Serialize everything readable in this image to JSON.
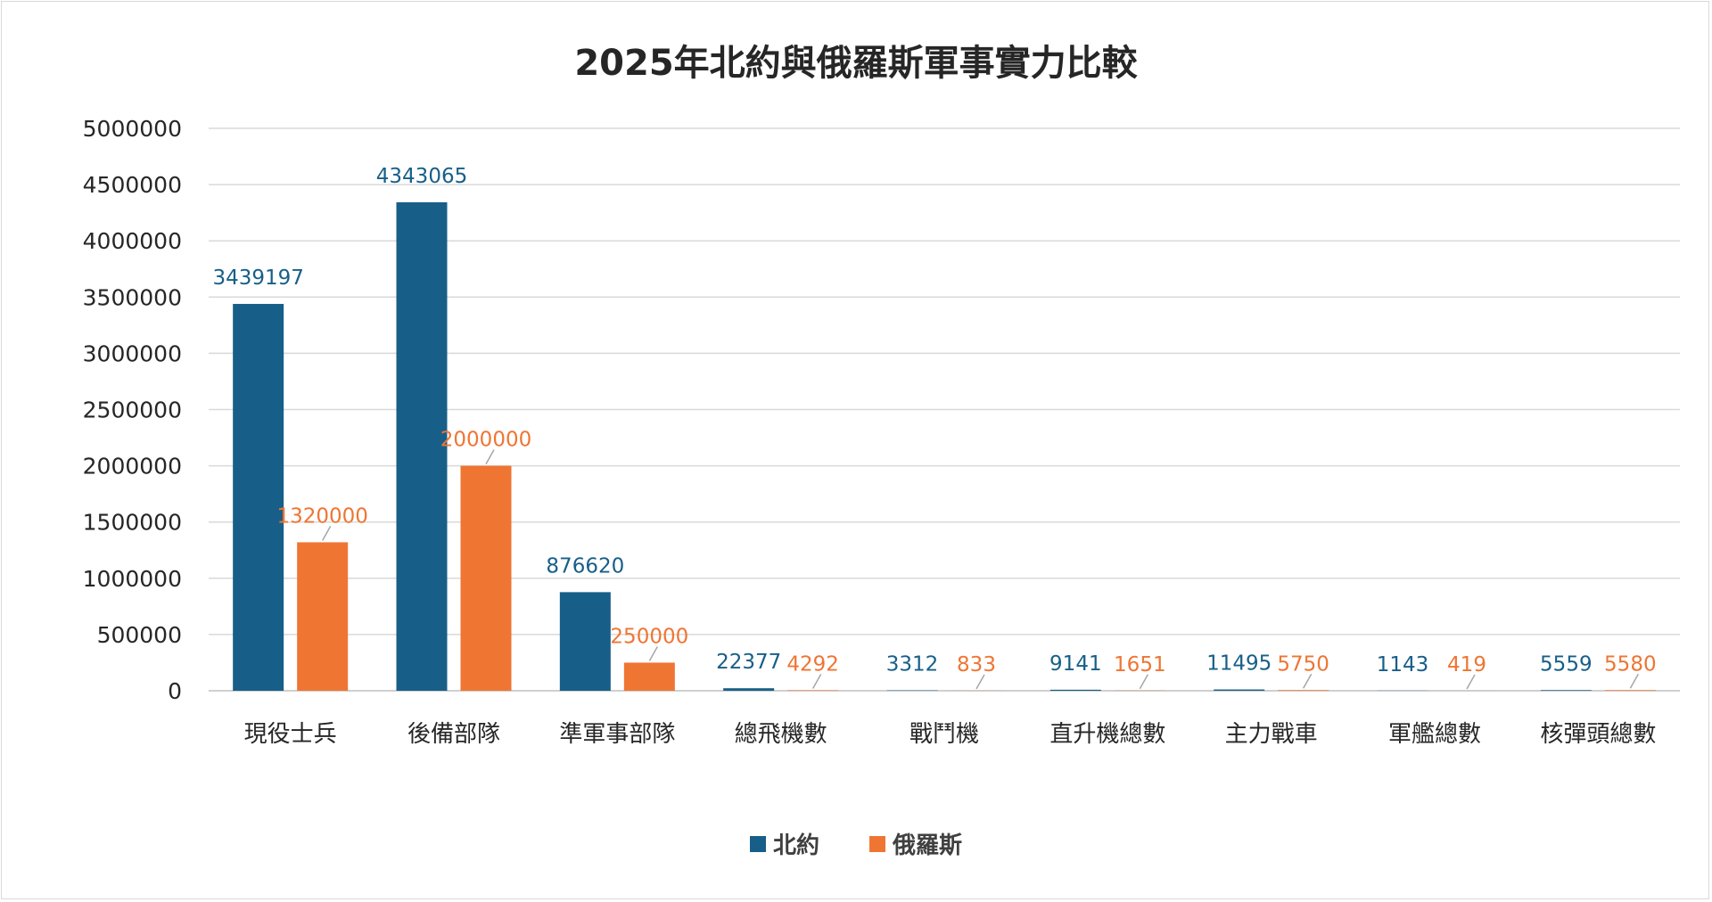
{
  "chart_data": {
    "type": "bar",
    "title": "2025年北約與俄羅斯軍事實力比較",
    "categories": [
      "現役士兵",
      "後備部隊",
      "準軍事部隊",
      "總飛機數",
      "戰鬥機",
      "直升機總數",
      "主力戰車",
      "軍艦總數",
      "核彈頭總數"
    ],
    "series": [
      {
        "name": "北約",
        "color": "#175f88",
        "values": [
          3439197,
          4343065,
          876620,
          22377,
          3312,
          9141,
          11495,
          1143,
          5559
        ]
      },
      {
        "name": "俄羅斯",
        "color": "#ef7533",
        "values": [
          1320000,
          2000000,
          250000,
          4292,
          833,
          1651,
          5750,
          419,
          5580
        ]
      }
    ],
    "ylim": [
      0,
      5000000
    ],
    "yticks": [
      "0",
      "500000",
      "1000000",
      "1500000",
      "2000000",
      "2500000",
      "3000000",
      "3500000",
      "4000000",
      "4500000",
      "5000000"
    ],
    "grid": true,
    "legend_position": "bottom",
    "xlabel": "",
    "ylabel": ""
  }
}
